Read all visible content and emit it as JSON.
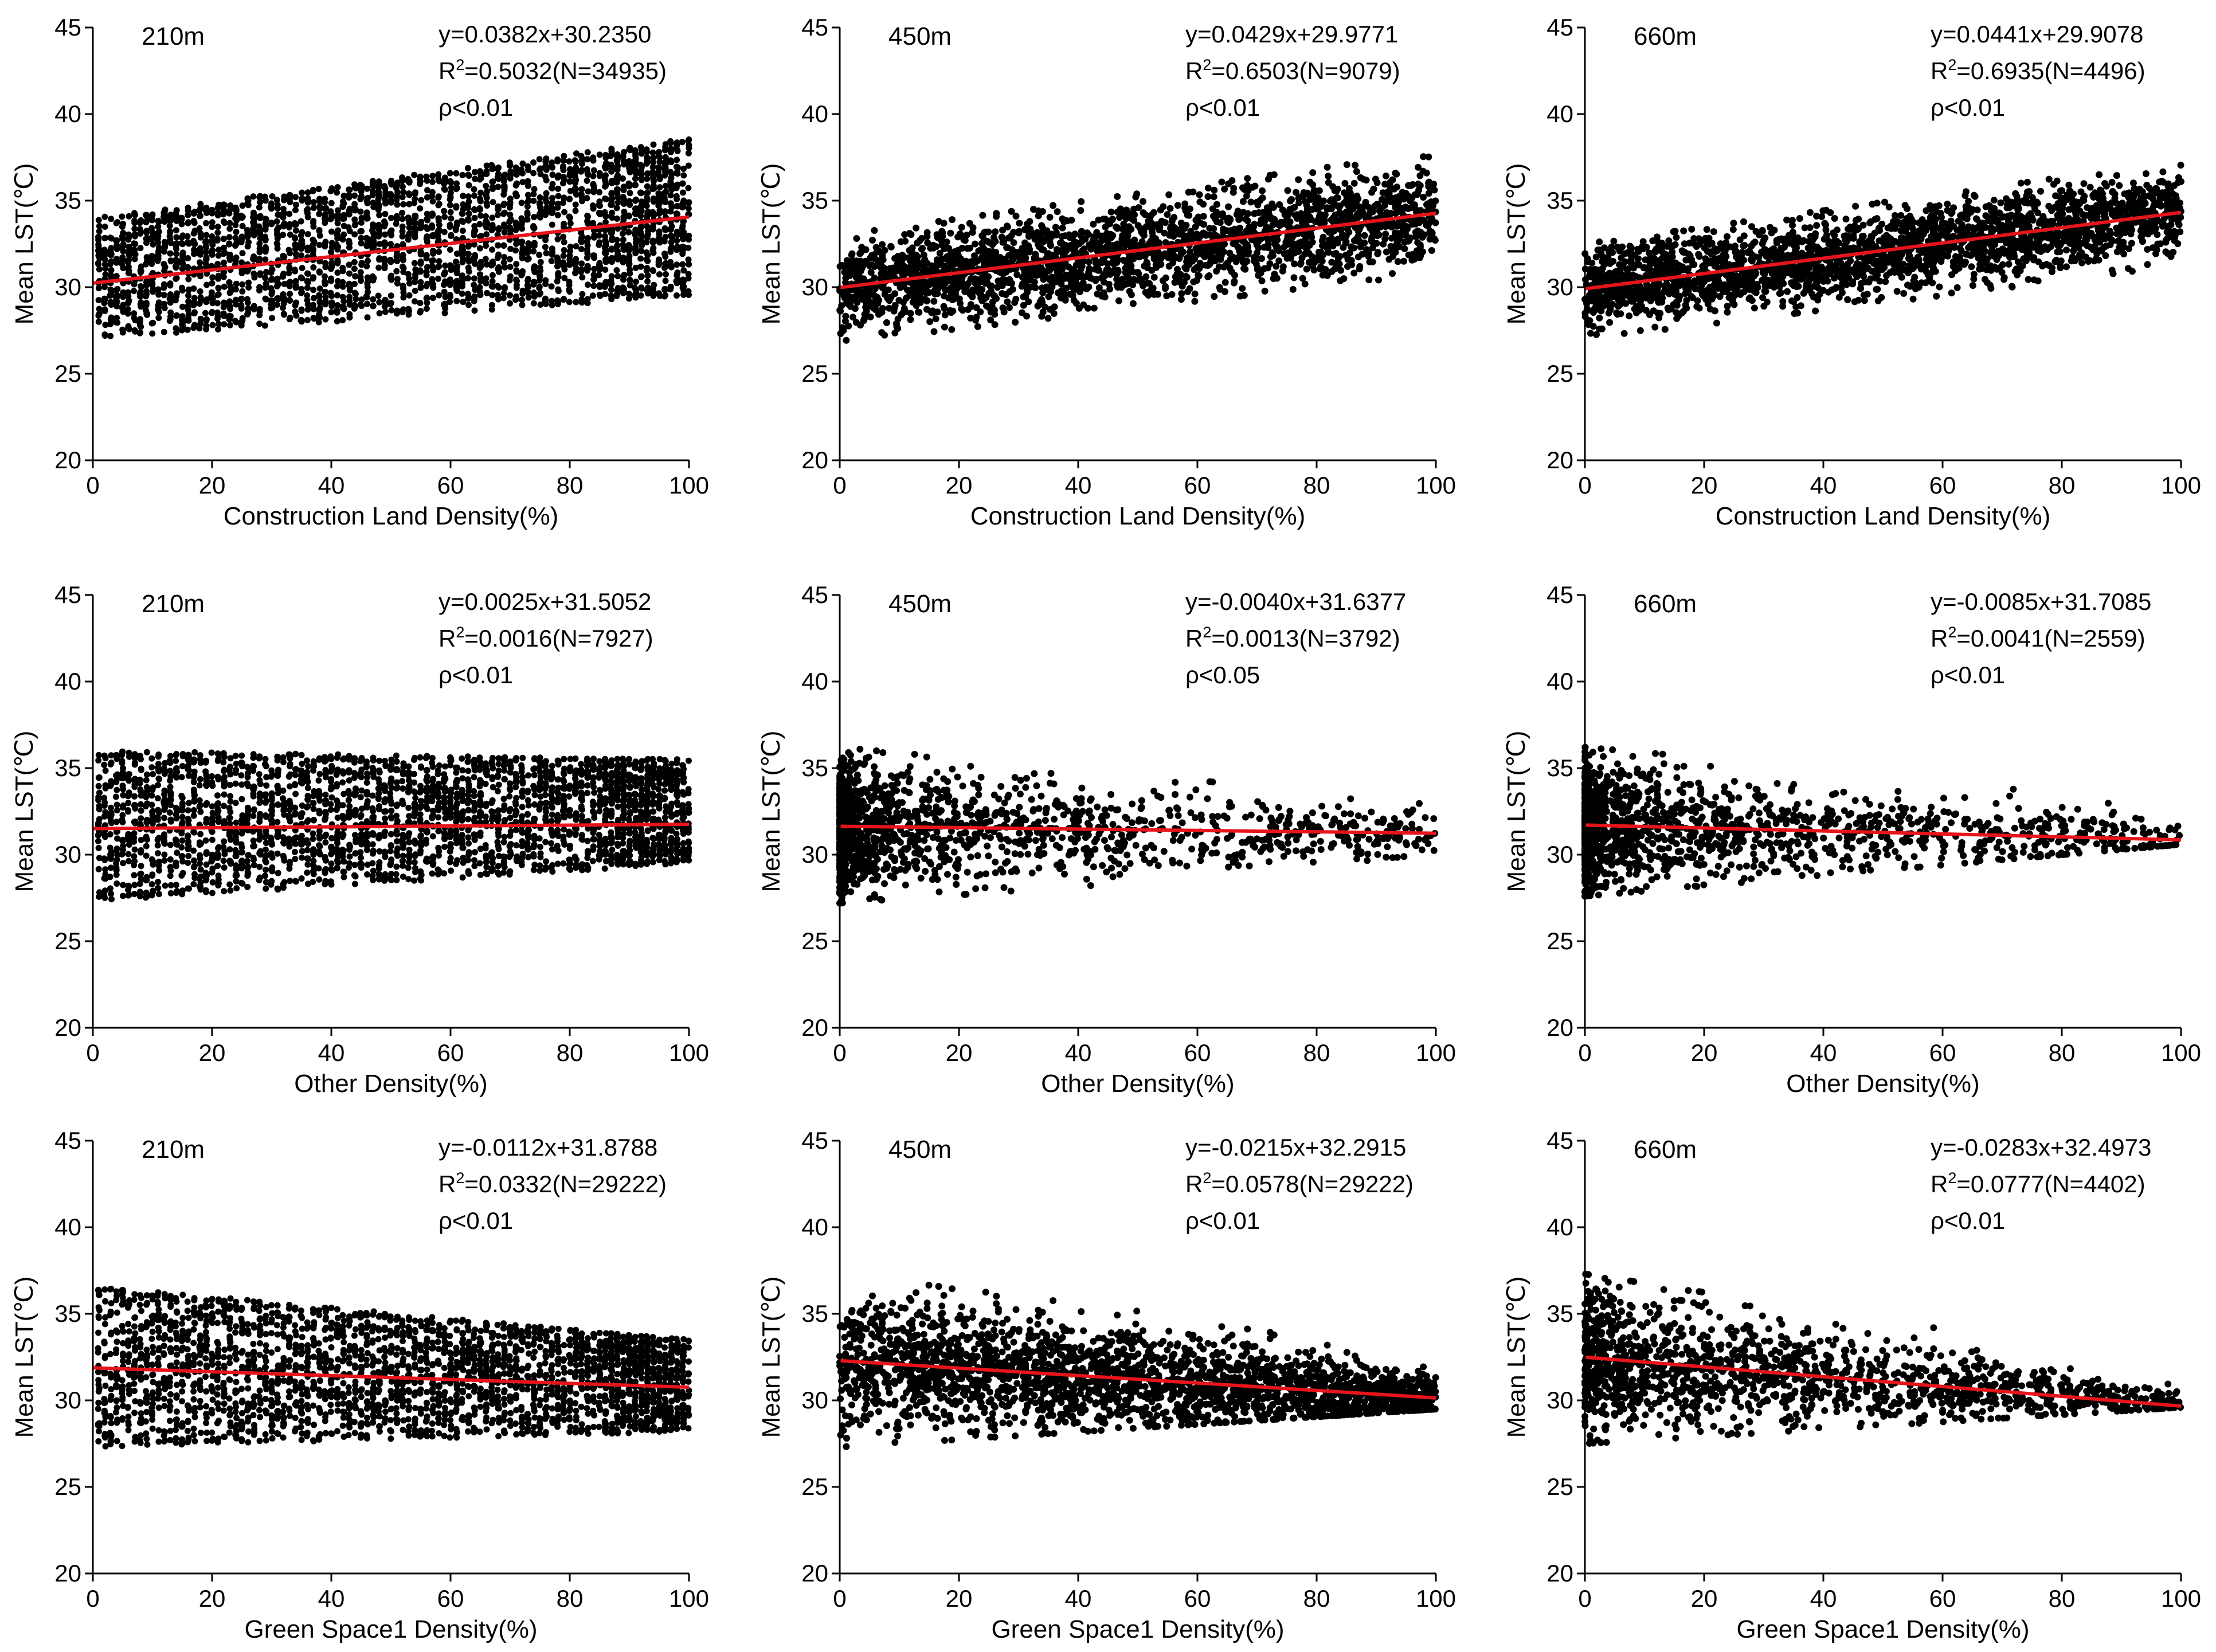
{
  "chart_data": [
    {
      "type": "scatter",
      "panel_label": "210m",
      "equation": "y=0.0382x+30.2350",
      "r2_prefix": "R",
      "r2_exp": "2",
      "r2_value": "=0.5032(N=34935)",
      "p_text": "ρ<0.01",
      "xlabel": "Construction Land Density(%)",
      "ylabel": "Mean LST(℃)",
      "xlim": [
        0,
        100
      ],
      "ylim": [
        20,
        45
      ],
      "xticks": [
        "0",
        "20",
        "40",
        "60",
        "80",
        "100"
      ],
      "yticks": [
        "20",
        "25",
        "30",
        "35",
        "40",
        "45"
      ],
      "slope": 0.0382,
      "intercept": 30.235,
      "n": 34935,
      "point_style": "columns",
      "trend": "increasing",
      "x_range": [
        0,
        100
      ],
      "scatter_bounds": {
        "low_at_x0": 27.0,
        "high_at_x0": 34.0,
        "low_at_x100": 29.5,
        "high_at_x100": 38.6
      }
    },
    {
      "type": "scatter",
      "panel_label": "450m",
      "equation": "y=0.0429x+29.9771",
      "r2_prefix": "R",
      "r2_exp": "2",
      "r2_value": "=0.6503(N=9079)",
      "p_text": "ρ<0.01",
      "xlabel": "Construction Land Density(%)",
      "ylabel": "Mean LST(℃)",
      "xlim": [
        0,
        100
      ],
      "ylim": [
        20,
        45
      ],
      "xticks": [
        "0",
        "20",
        "40",
        "60",
        "80",
        "100"
      ],
      "yticks": [
        "20",
        "25",
        "30",
        "35",
        "40",
        "45"
      ],
      "slope": 0.0429,
      "intercept": 29.9771,
      "n": 9079,
      "point_style": "dense",
      "trend": "increasing",
      "x_range": [
        0,
        100
      ],
      "scatter_bounds": {
        "low_at_x0": 26.8,
        "high_at_x0": 33.0,
        "low_at_x100": 30.8,
        "high_at_x100": 37.8
      }
    },
    {
      "type": "scatter",
      "panel_label": "660m",
      "equation": "y=0.0441x+29.9078",
      "r2_prefix": "R",
      "r2_exp": "2",
      "r2_value": "=0.6935(N=4496)",
      "p_text": "ρ<0.01",
      "xlabel": "Construction Land Density(%)",
      "ylabel": "Mean LST(℃)",
      "xlim": [
        0,
        100
      ],
      "ylim": [
        20,
        45
      ],
      "xticks": [
        "0",
        "20",
        "40",
        "60",
        "80",
        "100"
      ],
      "yticks": [
        "20",
        "25",
        "30",
        "35",
        "40",
        "45"
      ],
      "slope": 0.0441,
      "intercept": 29.9078,
      "n": 4496,
      "point_style": "dense",
      "trend": "increasing",
      "x_range": [
        0,
        100
      ],
      "scatter_bounds": {
        "low_at_x0": 27.0,
        "high_at_x0": 32.5,
        "low_at_x100": 31.2,
        "high_at_x100": 37.3
      }
    },
    {
      "type": "scatter",
      "panel_label": "210m",
      "equation": "y=0.0025x+31.5052",
      "r2_prefix": "R",
      "r2_exp": "2",
      "r2_value": "=0.0016(N=7927)",
      "p_text": "ρ<0.01",
      "xlabel": "Other Density(%)",
      "ylabel": "Mean LST(℃)",
      "xlim": [
        0,
        100
      ],
      "ylim": [
        20,
        45
      ],
      "xticks": [
        "0",
        "20",
        "40",
        "60",
        "80",
        "100"
      ],
      "yticks": [
        "20",
        "25",
        "30",
        "35",
        "40",
        "45"
      ],
      "slope": 0.0025,
      "intercept": 31.5052,
      "n": 7927,
      "point_style": "columns",
      "trend": "flat",
      "x_range": [
        0,
        100
      ],
      "scatter_bounds": {
        "low_at_x0": 27.3,
        "high_at_x0": 36.0,
        "low_at_x100": 29.5,
        "high_at_x100": 35.5
      }
    },
    {
      "type": "scatter",
      "panel_label": "450m",
      "equation": "y=-0.0040x+31.6377",
      "r2_prefix": "R",
      "r2_exp": "2",
      "r2_value": "=0.0013(N=3792)",
      "p_text": "ρ<0.05",
      "xlabel": "Other Density(%)",
      "ylabel": "Mean LST(℃)",
      "xlim": [
        0,
        100
      ],
      "ylim": [
        20,
        45
      ],
      "xticks": [
        "0",
        "20",
        "40",
        "60",
        "80",
        "100"
      ],
      "yticks": [
        "20",
        "25",
        "30",
        "35",
        "40",
        "45"
      ],
      "slope": -0.004,
      "intercept": 31.6377,
      "n": 3792,
      "point_style": "sparse",
      "trend": "flat",
      "x_range": [
        0,
        100
      ],
      "scatter_bounds": {
        "low_at_x0": 27.2,
        "high_at_x0": 36.2,
        "low_at_x100": 29.6,
        "high_at_x100": 33.0
      }
    },
    {
      "type": "scatter",
      "panel_label": "660m",
      "equation": "y=-0.0085x+31.7085",
      "r2_prefix": "R",
      "r2_exp": "2",
      "r2_value": "=0.0041(N=2559)",
      "p_text": "ρ<0.01",
      "xlabel": "Other Density(%)",
      "ylabel": "Mean LST(℃)",
      "xlim": [
        0,
        100
      ],
      "ylim": [
        20,
        45
      ],
      "xticks": [
        "0",
        "20",
        "40",
        "60",
        "80",
        "100"
      ],
      "yticks": [
        "20",
        "25",
        "30",
        "35",
        "40",
        "45"
      ],
      "slope": -0.0085,
      "intercept": 31.7085,
      "n": 2559,
      "point_style": "sparse",
      "trend": "flat",
      "x_range": [
        0,
        100
      ],
      "scatter_bounds": {
        "low_at_x0": 27.6,
        "high_at_x0": 36.2,
        "low_at_x100": 30.6,
        "high_at_x100": 33.2
      }
    },
    {
      "type": "scatter",
      "panel_label": "210m",
      "equation": "y=-0.0112x+31.8788",
      "r2_prefix": "R",
      "r2_exp": "2",
      "r2_value": "=0.0332(N=29222)",
      "p_text": "ρ<0.01",
      "xlabel": "Green Space1 Density(%)",
      "ylabel": "Mean LST(℃)",
      "xlim": [
        0,
        100
      ],
      "ylim": [
        20,
        45
      ],
      "xticks": [
        "0",
        "20",
        "40",
        "60",
        "80",
        "100"
      ],
      "yticks": [
        "20",
        "25",
        "30",
        "35",
        "40",
        "45"
      ],
      "slope": -0.0112,
      "intercept": 31.8788,
      "n": 29222,
      "point_style": "columns",
      "trend": "decreasing",
      "x_range": [
        0,
        100
      ],
      "scatter_bounds": {
        "low_at_x0": 27.3,
        "high_at_x0": 36.6,
        "low_at_x100": 28.2,
        "high_at_x100": 33.5
      }
    },
    {
      "type": "scatter",
      "panel_label": "450m",
      "equation": "y=-0.0215x+32.2915",
      "r2_prefix": "R",
      "r2_exp": "2",
      "r2_value": "=0.0578(N=29222)",
      "p_text": "ρ<0.01",
      "xlabel": "Green Space1 Density(%)",
      "ylabel": "Mean LST(℃)",
      "xlim": [
        0,
        100
      ],
      "ylim": [
        20,
        45
      ],
      "xticks": [
        "0",
        "20",
        "40",
        "60",
        "80",
        "100"
      ],
      "yticks": [
        "20",
        "25",
        "30",
        "35",
        "40",
        "45"
      ],
      "slope": -0.0215,
      "intercept": 32.2915,
      "n": 29222,
      "point_style": "dense",
      "trend": "decreasing",
      "x_range": [
        0,
        100
      ],
      "scatter_bounds": {
        "low_at_x0": 27.3,
        "high_at_x0": 37.3,
        "low_at_x100": 29.5,
        "high_at_x100": 33.0
      }
    },
    {
      "type": "scatter",
      "panel_label": "660m",
      "equation": "y=-0.0283x+32.4973",
      "r2_prefix": "R",
      "r2_exp": "2",
      "r2_value": "=0.0777(N=4402)",
      "p_text": "ρ<0.01",
      "xlabel": "Green Space1 Density(%)",
      "ylabel": "Mean LST(℃)",
      "xlim": [
        0,
        100
      ],
      "ylim": [
        20,
        45
      ],
      "xticks": [
        "0",
        "20",
        "40",
        "60",
        "80",
        "100"
      ],
      "yticks": [
        "20",
        "25",
        "30",
        "35",
        "40",
        "45"
      ],
      "slope": -0.0283,
      "intercept": 32.4973,
      "n": 4402,
      "point_style": "dense_then_sparse",
      "trend": "decreasing",
      "x_range": [
        0,
        100
      ],
      "scatter_bounds": {
        "low_at_x0": 27.5,
        "high_at_x0": 37.3,
        "low_at_x100": 29.6,
        "high_at_x100": 32.0
      }
    }
  ],
  "colors": {
    "trendline": "#e8141b",
    "points": "#000000",
    "axes": "#000000",
    "background": "#ffffff"
  }
}
